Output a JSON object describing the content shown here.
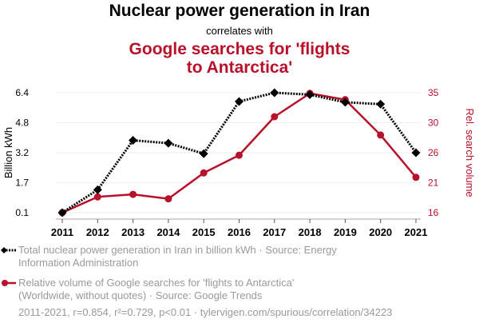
{
  "header": {
    "title": "Nuclear power generation in Iran",
    "subtitle": "correlates with",
    "title2_line1": "Google searches for 'flights",
    "title2_line2": "to Antarctica'"
  },
  "colors": {
    "series1": "#000000",
    "series2": "#b8112a",
    "grid": "#eeeeee",
    "muted_text": "#9a9a9a"
  },
  "legend": {
    "series1_line1": "Total nuclear power generation in Iran in billion kWh · Source: Energy",
    "series1_line2": "Information Administration",
    "series2_line1": "Relative volume of Google searches for 'flights to Antarctica'",
    "series2_line2": "(Worldwide, without quotes) · Source: Google Trends"
  },
  "footer": "2011-2021, r=0.854, r²=0.729, p<0.01 · tylervigen.com/spurious/correlation/34223",
  "chart_data": {
    "type": "line",
    "title": "Nuclear power generation in Iran correlates with Google searches for 'flights to Antarctica'",
    "x": [
      "2011",
      "2012",
      "2013",
      "2014",
      "2015",
      "2016",
      "2017",
      "2018",
      "2019",
      "2020",
      "2021"
    ],
    "xlabel": "",
    "ylabel_left": "Billion kWh",
    "ylabel_right": "Rel. search volume",
    "yticks_left": [
      "0.1",
      "1.7",
      "3.2",
      "4.8",
      "6.4"
    ],
    "yticks_right": [
      "16",
      "21",
      "26",
      "30",
      "35"
    ],
    "ylim_left": [
      0.1,
      6.4
    ],
    "ylim_right": [
      16,
      35
    ],
    "grid": true,
    "legend_position": "bottom",
    "series": [
      {
        "name": "Total nuclear power generation in Iran in billion kWh",
        "axis": "left",
        "style": "dotted",
        "marker": "diamond",
        "values": [
          0.1,
          1.3,
          3.9,
          3.75,
          3.2,
          5.94,
          6.4,
          6.3,
          5.9,
          5.8,
          3.25
        ]
      },
      {
        "name": "Relative volume of Google searches for 'flights to Antarctica'",
        "axis": "right",
        "style": "solid",
        "marker": "circle",
        "values": [
          16,
          18.5,
          18.9,
          18.2,
          22.3,
          25.1,
          31.2,
          34.9,
          33.9,
          28.3,
          21.6
        ]
      }
    ]
  }
}
